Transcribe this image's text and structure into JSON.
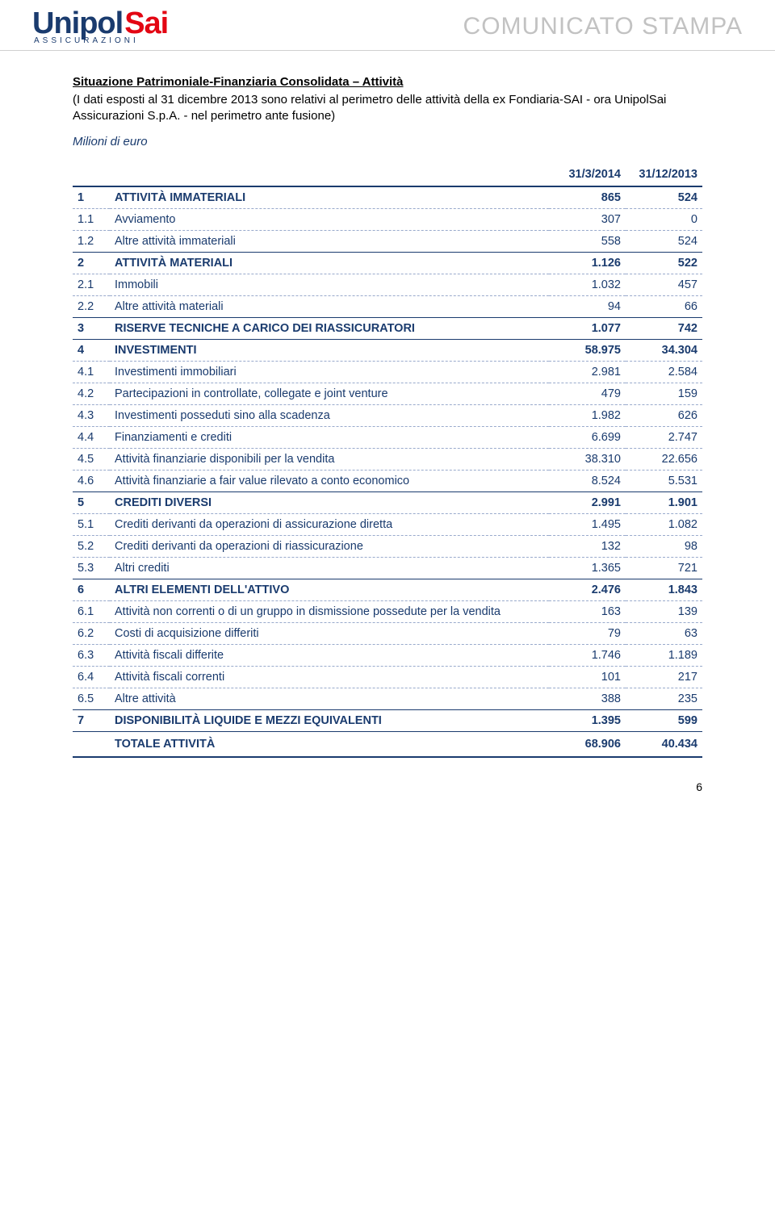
{
  "header": {
    "logo_part1": "Unipol",
    "logo_part2": "Sai",
    "logo_sub": "ASSICURAZIONI",
    "banner_title": "COMUNICATO STAMPA"
  },
  "doc": {
    "title": "Situazione Patrimoniale-Finanziaria Consolidata – Attività",
    "subtitle": "(I dati esposti al 31 dicembre 2013 sono relativi al perimetro delle attività della ex Fondiaria-SAI - ora UnipolSai Assicurazioni S.p.A. - nel perimetro ante fusione)",
    "units": "Milioni di euro"
  },
  "table": {
    "columns": [
      "31/3/2014",
      "31/12/2013"
    ],
    "header_bg": "#ffffff",
    "border_color": "#1a3b6e",
    "dashed_color": "#99aacc",
    "text_color": "#1a3b6e",
    "rows": [
      {
        "type": "section",
        "code": "1",
        "label": "ATTIVITÀ IMMATERIALI",
        "v1": "865",
        "v2": "524"
      },
      {
        "type": "sub",
        "code": "1.1",
        "label": "Avviamento",
        "v1": "307",
        "v2": "0"
      },
      {
        "type": "sub",
        "code": "1.2",
        "label": "Altre attività immateriali",
        "v1": "558",
        "v2": "524"
      },
      {
        "type": "section",
        "code": "2",
        "label": "ATTIVITÀ MATERIALI",
        "v1": "1.126",
        "v2": "522"
      },
      {
        "type": "sub",
        "code": "2.1",
        "label": "Immobili",
        "v1": "1.032",
        "v2": "457"
      },
      {
        "type": "sub",
        "code": "2.2",
        "label": "Altre attività materiali",
        "v1": "94",
        "v2": "66"
      },
      {
        "type": "section",
        "code": "3",
        "label": "RISERVE TECNICHE A CARICO DEI RIASSICURATORI",
        "v1": "1.077",
        "v2": "742"
      },
      {
        "type": "section",
        "code": "4",
        "label": "INVESTIMENTI",
        "v1": "58.975",
        "v2": "34.304"
      },
      {
        "type": "sub",
        "code": "4.1",
        "label": "Investimenti immobiliari",
        "v1": "2.981",
        "v2": "2.584"
      },
      {
        "type": "sub",
        "code": "4.2",
        "label": "Partecipazioni in controllate, collegate e joint venture",
        "v1": "479",
        "v2": "159"
      },
      {
        "type": "sub",
        "code": "4.3",
        "label": "Investimenti posseduti sino alla scadenza",
        "v1": "1.982",
        "v2": "626"
      },
      {
        "type": "sub",
        "code": "4.4",
        "label": "Finanziamenti e crediti",
        "v1": "6.699",
        "v2": "2.747"
      },
      {
        "type": "sub",
        "code": "4.5",
        "label": "Attività finanziarie disponibili per la vendita",
        "v1": "38.310",
        "v2": "22.656"
      },
      {
        "type": "sub",
        "code": "4.6",
        "label": "Attività finanziarie a fair value rilevato a conto economico",
        "v1": "8.524",
        "v2": "5.531"
      },
      {
        "type": "section",
        "code": "5",
        "label": "CREDITI DIVERSI",
        "v1": "2.991",
        "v2": "1.901"
      },
      {
        "type": "sub",
        "code": "5.1",
        "label": "Crediti derivanti da operazioni di assicurazione diretta",
        "v1": "1.495",
        "v2": "1.082"
      },
      {
        "type": "sub",
        "code": "5.2",
        "label": "Crediti derivanti da operazioni di riassicurazione",
        "v1": "132",
        "v2": "98"
      },
      {
        "type": "sub",
        "code": "5.3",
        "label": "Altri crediti",
        "v1": "1.365",
        "v2": "721"
      },
      {
        "type": "section",
        "code": "6",
        "label": "ALTRI ELEMENTI DELL'ATTIVO",
        "v1": "2.476",
        "v2": "1.843"
      },
      {
        "type": "sub",
        "code": "6.1",
        "label": "Attività non correnti o di un gruppo in dismissione possedute per la vendita",
        "v1": "163",
        "v2": "139"
      },
      {
        "type": "sub",
        "code": "6.2",
        "label": "Costi di acquisizione differiti",
        "v1": "79",
        "v2": "63"
      },
      {
        "type": "sub",
        "code": "6.3",
        "label": "Attività fiscali differite",
        "v1": "1.746",
        "v2": "1.189"
      },
      {
        "type": "sub",
        "code": "6.4",
        "label": "Attività fiscali correnti",
        "v1": "101",
        "v2": "217"
      },
      {
        "type": "sub",
        "code": "6.5",
        "label": "Altre attività",
        "v1": "388",
        "v2": "235"
      },
      {
        "type": "section",
        "code": "7",
        "label": "DISPONIBILITÀ LIQUIDE E MEZZI EQUIVALENTI",
        "v1": "1.395",
        "v2": "599"
      },
      {
        "type": "grand",
        "code": "",
        "label": "TOTALE ATTIVITÀ",
        "v1": "68.906",
        "v2": "40.434"
      }
    ]
  },
  "page_number": "6"
}
